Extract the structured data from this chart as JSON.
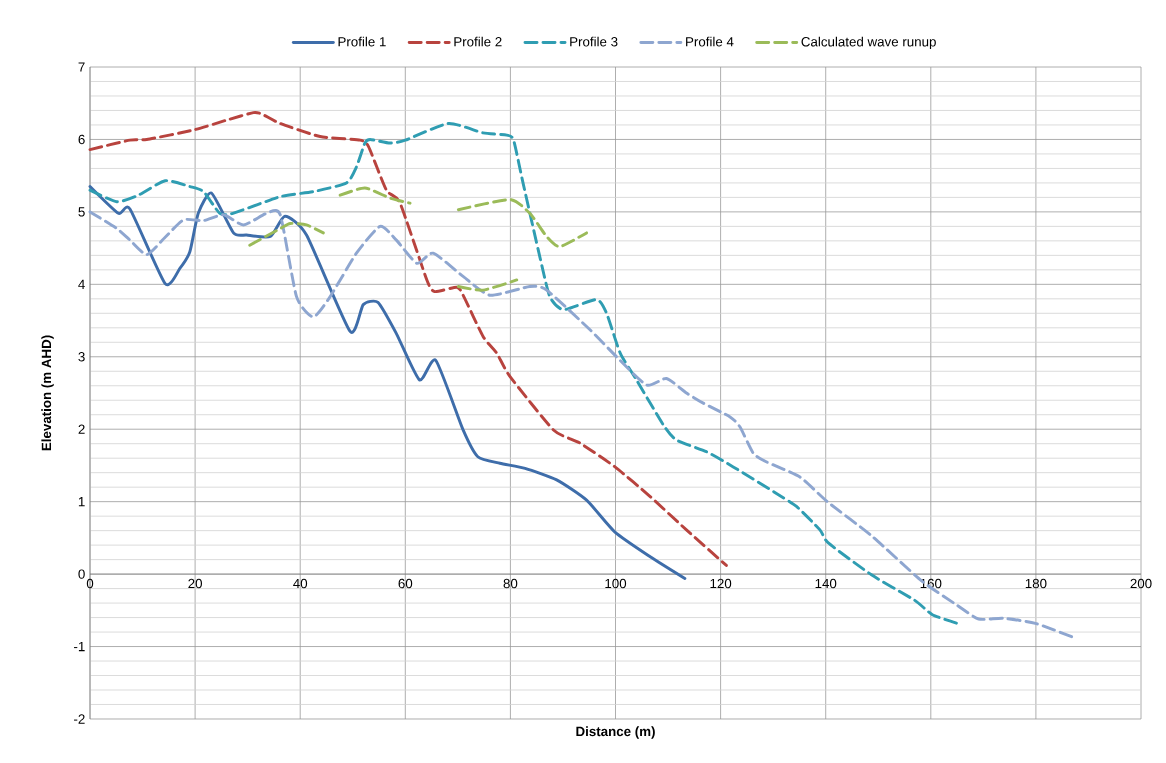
{
  "chart_data": {
    "type": "line",
    "xlabel": "Distance (m)",
    "ylabel": "Elevation (m AHD)",
    "xlim": [
      0,
      200
    ],
    "xticks": [
      0,
      20,
      40,
      60,
      80,
      100,
      120,
      140,
      160,
      180,
      200
    ],
    "ylim": [
      -2,
      7
    ],
    "yticks": [
      -2,
      -1,
      0,
      1,
      2,
      3,
      4,
      5,
      6,
      7
    ],
    "grid": true,
    "legend": "top",
    "series": [
      {
        "name": "Profile 1",
        "color": "#3e6daa",
        "line_style": "solid",
        "x": [
          0,
          5.4,
          7.6,
          14.3,
          17.1,
          19,
          20.6,
          23.1,
          27.3,
          29.8,
          34.3,
          37.1,
          41.2,
          49.5,
          52,
          54.8,
          58.3,
          62.7,
          65.8,
          71,
          73.8,
          78,
          82.8,
          88.8,
          94.5,
          99.9,
          106.6,
          113.2
        ],
        "values": [
          5.35,
          4.98,
          5.04,
          4.01,
          4.22,
          4.45,
          4.98,
          5.26,
          4.71,
          4.68,
          4.66,
          4.94,
          4.68,
          3.35,
          3.72,
          3.75,
          3.32,
          2.68,
          2.95,
          1.99,
          1.62,
          1.53,
          1.46,
          1.3,
          1.02,
          0.58,
          0.24,
          -0.06
        ]
      },
      {
        "name": "Profile 2",
        "color": "#b8433e",
        "line_style": "dashed",
        "x": [
          0,
          7.6,
          10.8,
          19.7,
          26.6,
          31.1,
          32.7,
          36.2,
          43.8,
          51.4,
          53,
          56.4,
          59,
          64.1,
          65.6,
          69.8,
          71,
          74.8,
          77.4,
          79.9,
          88.2,
          93.2,
          99.9,
          106.6,
          113.5,
          121.1
        ],
        "values": [
          5.86,
          5.99,
          6.0,
          6.13,
          6.28,
          6.37,
          6.35,
          6.22,
          6.04,
          5.99,
          5.9,
          5.3,
          5.12,
          4.06,
          3.9,
          3.96,
          3.85,
          3.28,
          3.05,
          2.73,
          1.99,
          1.81,
          1.48,
          1.07,
          0.61,
          0.12
        ]
      },
      {
        "name": "Profile 3",
        "color": "#2f9db2",
        "line_style": "dashed",
        "x": [
          0,
          5.1,
          9.2,
          14.3,
          19,
          21.6,
          24.7,
          27.2,
          36.2,
          42.5,
          48.8,
          50.7,
          52.3,
          53.3,
          57.1,
          60,
          68.2,
          74.8,
          79.3,
          80.6,
          82.4,
          85.6,
          87.5,
          90.1,
          96.4,
          98.3,
          100.9,
          104,
          109.1,
          111.6,
          117.3,
          122.4,
          130.7,
          134.5,
          138.9,
          140.5,
          148.7,
          156.9,
          160.3,
          165
        ],
        "values": [
          5.3,
          5.14,
          5.23,
          5.43,
          5.35,
          5.28,
          4.98,
          4.98,
          5.21,
          5.28,
          5.4,
          5.62,
          5.95,
          6.0,
          5.95,
          5.99,
          6.22,
          6.09,
          6.06,
          5.99,
          5.4,
          4.38,
          3.83,
          3.65,
          3.79,
          3.6,
          3.05,
          2.68,
          2.06,
          1.85,
          1.69,
          1.48,
          1.11,
          0.93,
          0.61,
          0.43,
          -0.01,
          -0.36,
          -0.56,
          -0.68
        ]
      },
      {
        "name": "Profile 4",
        "color": "#8ea6d0",
        "line_style": "dashed",
        "x": [
          0,
          5.1,
          7.6,
          10.8,
          14.3,
          17.8,
          21.6,
          25.4,
          29.2,
          33.6,
          36.2,
          39.3,
          42.5,
          45.7,
          50.7,
          55.2,
          58.3,
          62.2,
          65.3,
          71,
          76.1,
          83.7,
          86.9,
          95.2,
          100.2,
          105.9,
          109.7,
          113.5,
          116.7,
          121.8,
          123.7,
          126.2,
          128.7,
          135.1,
          140.3,
          148.7,
          158.2,
          165,
          169.1,
          173.8,
          179.9,
          187.4
        ],
        "values": [
          5.0,
          4.77,
          4.61,
          4.41,
          4.65,
          4.89,
          4.88,
          4.96,
          4.82,
          4.98,
          4.96,
          3.83,
          3.55,
          3.83,
          4.43,
          4.8,
          4.61,
          4.29,
          4.43,
          4.11,
          3.85,
          3.97,
          3.92,
          3.37,
          3.0,
          2.61,
          2.7,
          2.5,
          2.36,
          2.17,
          2.03,
          1.67,
          1.55,
          1.34,
          1.0,
          0.53,
          -0.09,
          -0.43,
          -0.62,
          -0.61,
          -0.68,
          -0.88
        ]
      },
      {
        "name": "Calculated wave runup",
        "color": "#9bbb59",
        "line_style": "dashed",
        "x": [
          30.4,
          36.2,
          38.1,
          41.2,
          44.4,
          46,
          47.6,
          52.3,
          57.1,
          60.9,
          65,
          70.1,
          74.8,
          81.2,
          75,
          70.1,
          79.9,
          83.7,
          86.9,
          89.4,
          94.5
        ],
        "values": [
          4.54,
          4.77,
          4.84,
          4.82,
          4.71,
          null,
          5.23,
          5.33,
          5.19,
          5.12,
          null,
          3.97,
          3.92,
          4.06,
          null,
          5.03,
          5.17,
          4.98,
          4.66,
          4.52,
          4.71
        ]
      }
    ]
  }
}
